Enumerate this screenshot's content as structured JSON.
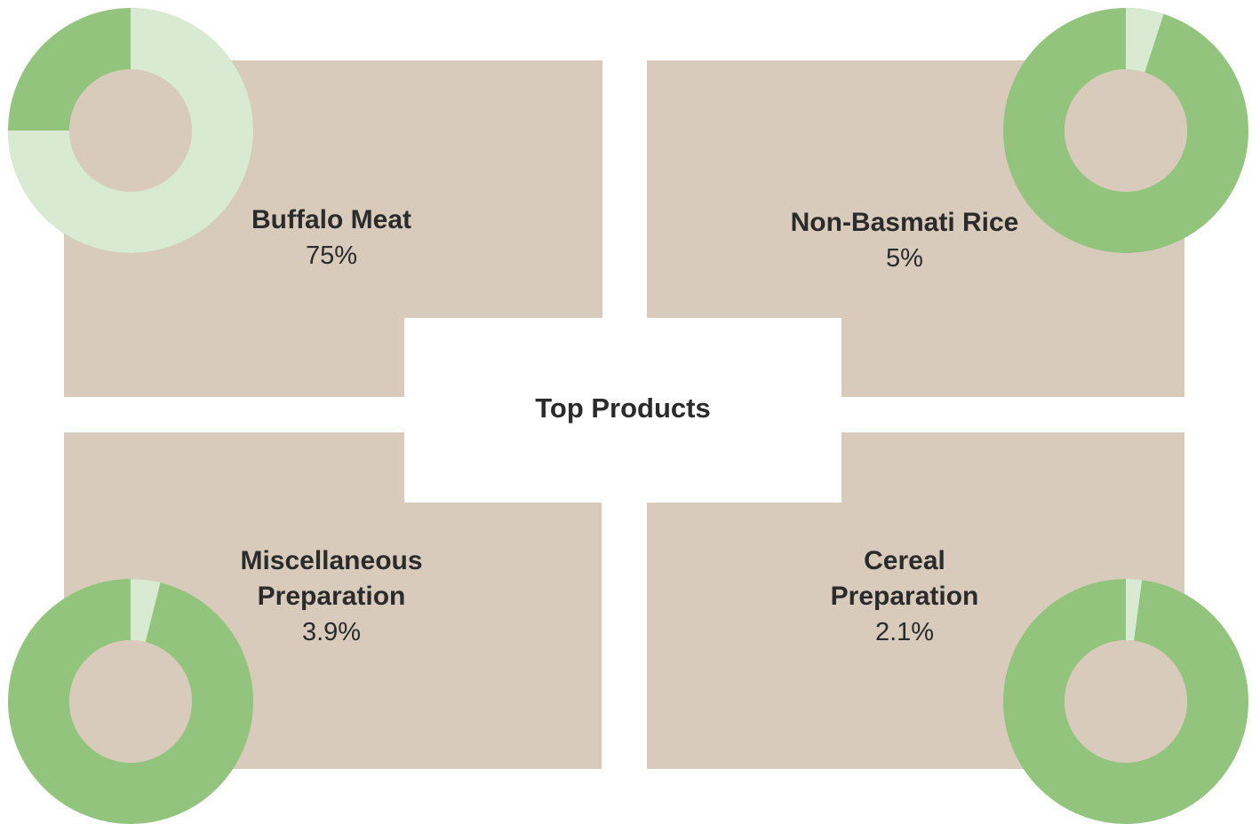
{
  "title": "Top Products",
  "chart_data": [
    {
      "type": "donut",
      "title": "Buffalo Meat",
      "values": [
        75
      ],
      "value_labels": [
        "75%"
      ],
      "color": "#d9ead3",
      "track_color": "#93c47d"
    },
    {
      "type": "donut",
      "title": "Non-Basmati Rice",
      "values": [
        5
      ],
      "value_labels": [
        "5%"
      ],
      "color": "#d9ead3",
      "track_color": "#93c47d"
    },
    {
      "type": "donut",
      "title": "Miscellaneous Preparation",
      "values": [
        3.9
      ],
      "value_labels": [
        "3.9%"
      ],
      "color": "#d9ead3",
      "track_color": "#93c47d"
    },
    {
      "type": "donut",
      "title": "Cereal Preparation",
      "values": [
        2.1
      ],
      "value_labels": [
        "2.1%"
      ],
      "color": "#d9ead3",
      "track_color": "#93c47d"
    }
  ]
}
